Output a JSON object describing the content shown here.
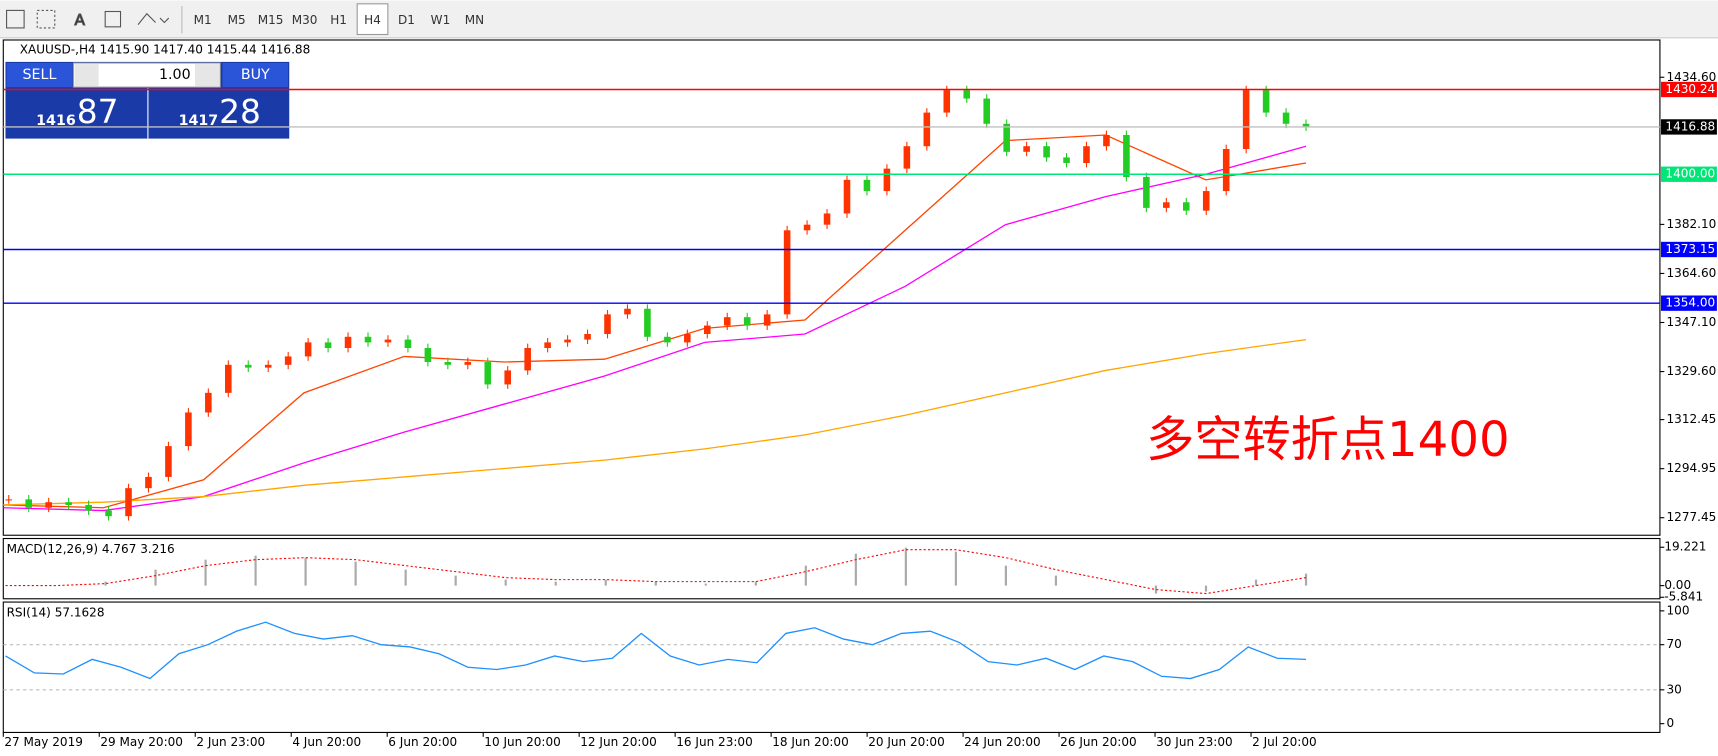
{
  "toolbar": {
    "timeframes": [
      "M1",
      "M5",
      "M15",
      "M30",
      "H1",
      "H4",
      "D1",
      "W1",
      "MN"
    ],
    "active": "H4"
  },
  "trade_panel": {
    "sell": "SELL",
    "buy": "BUY",
    "lot": "1.00",
    "sell_big": "1416",
    "sell_small": "87",
    "buy_big": "1417",
    "buy_small": "28"
  },
  "chart": {
    "header": "XAUUSD-,H4  1415.90 1417.40 1415.44 1416.88",
    "annotation": "多空转折点1400",
    "ylim": [
      1271.2,
      1447.9
    ],
    "yticks": [
      {
        "value": 1434.6,
        "label": "1434.60"
      },
      {
        "value": 1382.1,
        "label": "1382.10"
      },
      {
        "value": 1364.6,
        "label": "1364.60"
      },
      {
        "value": 1347.1,
        "label": "1347.10"
      },
      {
        "value": 1329.6,
        "label": "1329.60"
      },
      1312.45,
      1294.95,
      1277.45
    ],
    "levels": [
      {
        "value": 1430.24,
        "color": "#ff0000"
      },
      {
        "value": 1416.88,
        "color": "#c0c0c0"
      },
      {
        "value": 1400,
        "label": "1400.00",
        "color": "#00e676"
      },
      {
        "value": 1373.15,
        "color": "#0000ff"
      },
      {
        "value": 1354,
        "label": "1354.00",
        "color": "#0000ff"
      }
    ],
    "closes": [
      1284,
      1281,
      1283,
      1282,
      1280,
      1278,
      1288,
      1292,
      1303,
      1315,
      1322,
      1332,
      1331,
      1332,
      1335,
      1340,
      1338,
      1342,
      1340,
      1341,
      1338,
      1333,
      1332,
      1333,
      1325,
      1330,
      1338,
      1340,
      1341,
      1343,
      1350,
      1352,
      1342,
      1340,
      1343,
      1346,
      1349,
      1346,
      1350,
      1380,
      1382,
      1386,
      1398,
      1394,
      1402,
      1410,
      1422,
      1430,
      1427,
      1418,
      1408,
      1410,
      1406,
      1404,
      1410,
      1414,
      1399,
      1388,
      1390,
      1387,
      1394,
      1409,
      1430,
      1422,
      1418,
      1417
    ],
    "moving_averages": [
      {
        "color": "#ff4500",
        "values": [
          1282,
          1281,
          1291,
          1322,
          1335,
          1333,
          1334,
          1345,
          1348,
          1380,
          1412,
          1414,
          1398,
          1404
        ]
      },
      {
        "color": "#ff00ff",
        "values": [
          1281,
          1280,
          1285,
          1297,
          1308,
          1318,
          1328,
          1340,
          1343,
          1360,
          1382,
          1392,
          1400,
          1410
        ]
      },
      {
        "color": "#ffa500",
        "values": [
          1282,
          1283,
          1285,
          1289,
          1292,
          1295,
          1298,
          1302,
          1307,
          1314,
          1322,
          1330,
          1336,
          1341
        ]
      }
    ],
    "time_labels": [
      "27 May 2019",
      "29 May 20:00",
      "2 Jun 23:00",
      "4 Jun 20:00",
      "6 Jun 20:00",
      "10 Jun 20:00",
      "12 Jun 20:00",
      "16 Jun 23:00",
      "18 Jun 20:00",
      "20 Jun 20:00",
      "24 Jun 20:00",
      "26 Jun 20:00",
      "30 Jun 23:00",
      "2 Jul 20:00"
    ]
  },
  "macd": {
    "label": "MACD(12,26,9) 4.767 3.216",
    "ylim": [
      -6.6,
      23.6
    ],
    "yticks": [
      19.221,
      {
        "value": 0,
        "label": "0.00"
      },
      -5.841
    ],
    "histogram": [
      0,
      0,
      2,
      8,
      13,
      15,
      14,
      12,
      8,
      5,
      3,
      2,
      3,
      2,
      1,
      2,
      10,
      16,
      19,
      17,
      10,
      5,
      0,
      -4,
      -3,
      3,
      6
    ],
    "signal": [
      0,
      0,
      1,
      5,
      10,
      13,
      14,
      13,
      10,
      7,
      4,
      3,
      3,
      2,
      2,
      2,
      7,
      13,
      18,
      18,
      14,
      8,
      3,
      -2,
      -4,
      0,
      4
    ]
  },
  "rsi": {
    "label": "RSI(14) 57.1628",
    "ylim": [
      -7.8,
      107.8
    ],
    "yticks": [
      100,
      70,
      30,
      0
    ],
    "values": [
      60,
      45,
      44,
      57,
      50,
      40,
      62,
      70,
      82,
      90,
      80,
      75,
      78,
      70,
      68,
      62,
      50,
      48,
      52,
      60,
      55,
      58,
      80,
      60,
      52,
      57,
      54,
      80,
      85,
      75,
      70,
      80,
      82,
      72,
      55,
      52,
      58,
      48,
      60,
      55,
      42,
      40,
      48,
      68,
      58,
      57
    ]
  }
}
